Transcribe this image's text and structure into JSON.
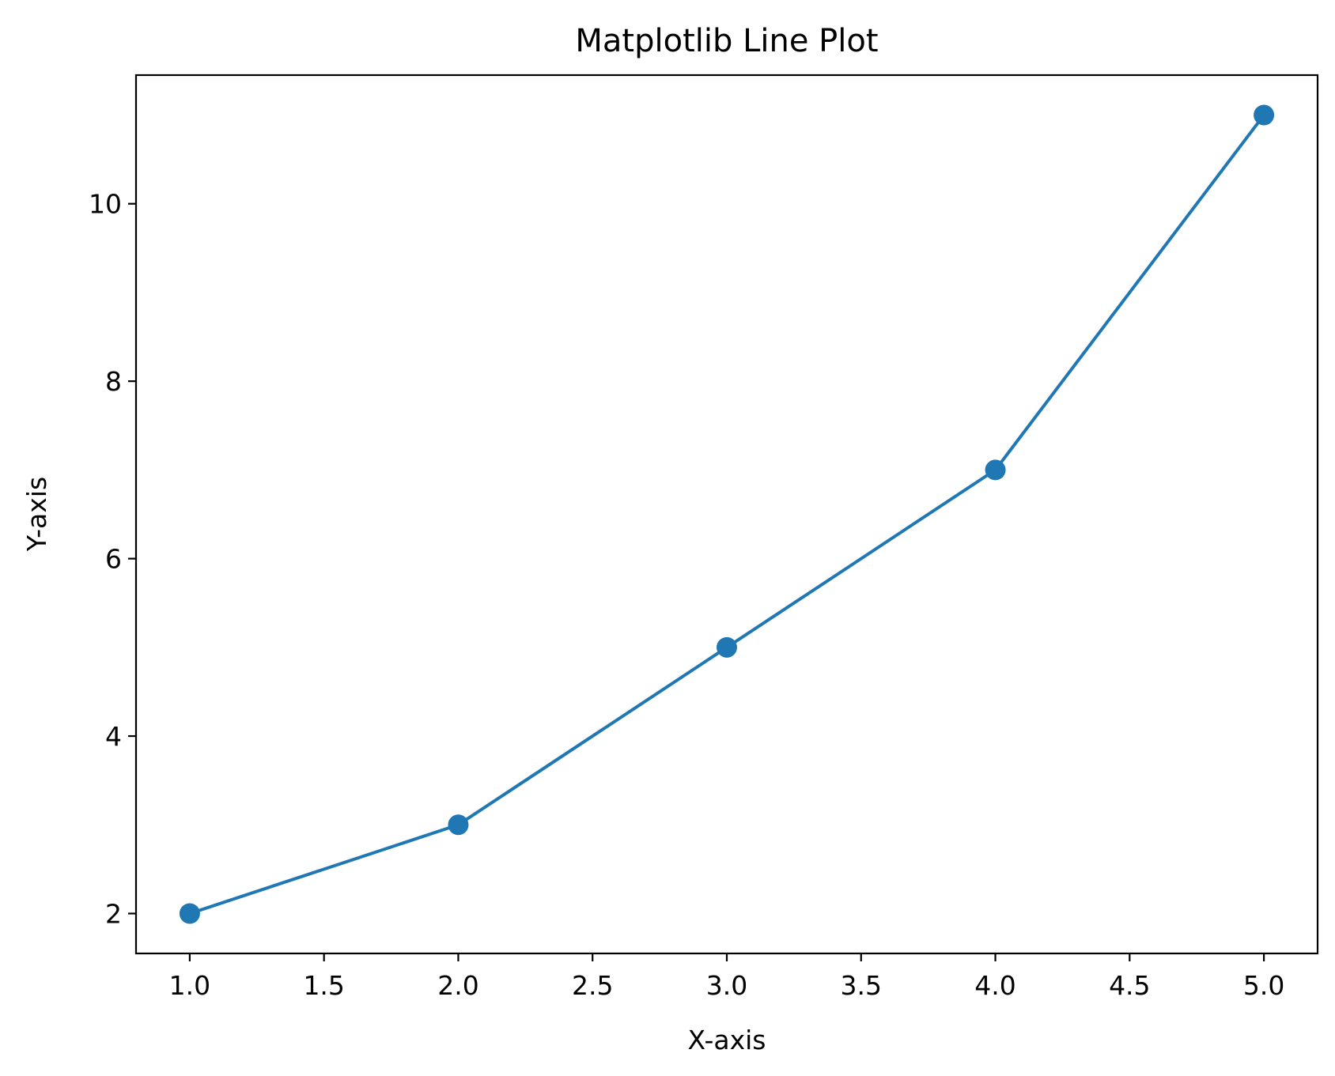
{
  "chart_data": {
    "type": "line",
    "title": "Matplotlib Line Plot",
    "xlabel": "X-axis",
    "ylabel": "Y-axis",
    "x": [
      1,
      2,
      3,
      4,
      5
    ],
    "series": [
      {
        "values": [
          2,
          3,
          5,
          7,
          11
        ],
        "color": "#1f77b4",
        "marker": "circle"
      }
    ],
    "xlim": [
      0.8,
      5.2
    ],
    "ylim": [
      1.55,
      11.45
    ],
    "xticks": [
      {
        "value": 1.0,
        "label": "1.0"
      },
      {
        "value": 1.5,
        "label": "1.5"
      },
      {
        "value": 2.0,
        "label": "2.0"
      },
      {
        "value": 2.5,
        "label": "2.5"
      },
      {
        "value": 3.0,
        "label": "3.0"
      },
      {
        "value": 3.5,
        "label": "3.5"
      },
      {
        "value": 4.0,
        "label": "4.0"
      },
      {
        "value": 4.5,
        "label": "4.5"
      },
      {
        "value": 5.0,
        "label": "5.0"
      }
    ],
    "yticks": [
      {
        "value": 2,
        "label": "2"
      },
      {
        "value": 4,
        "label": "4"
      },
      {
        "value": 6,
        "label": "6"
      },
      {
        "value": 8,
        "label": "8"
      },
      {
        "value": 10,
        "label": "10"
      }
    ],
    "grid": false,
    "legend": "none"
  }
}
